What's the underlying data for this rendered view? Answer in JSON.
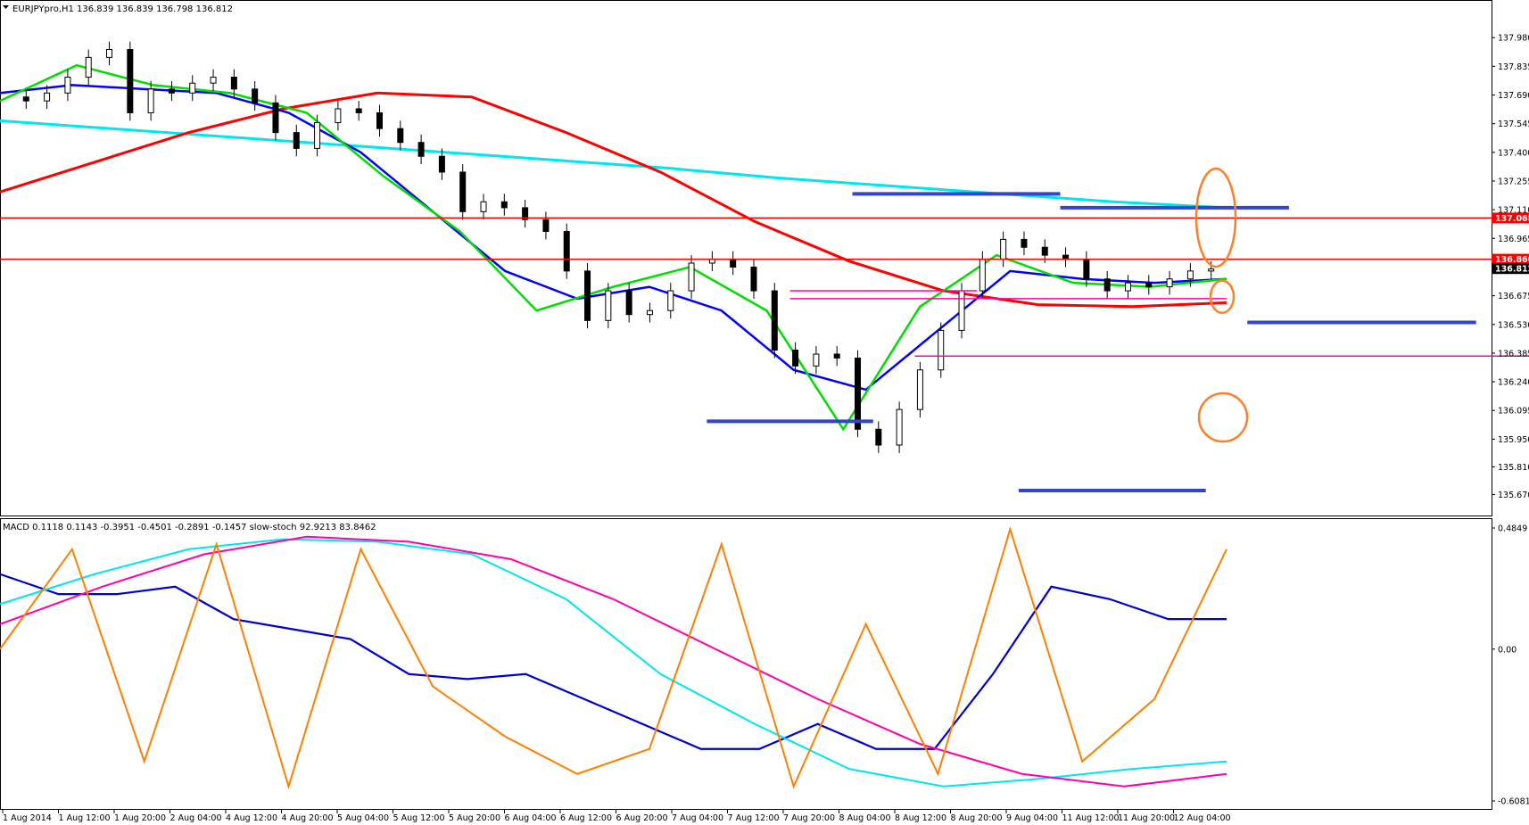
{
  "chart_data": [
    {
      "type": "candlestick",
      "title": "EURJPYpro,H1",
      "ohlc_label": "136.839 136.839 136.798 136.812",
      "ylim": [
        135.6,
        138.08
      ],
      "y_ticks": [
        "137.980",
        "137.835",
        "137.690",
        "137.545",
        "137.400",
        "137.255",
        "137.110",
        "136.965",
        "136.820",
        "136.675",
        "136.530",
        "136.385",
        "136.240",
        "136.095",
        "135.950",
        "135.810",
        "135.670"
      ],
      "price_tags": [
        {
          "label": "137.068",
          "value": 137.068,
          "color": "#ff0000"
        },
        {
          "label": "136.860",
          "value": 136.86,
          "color": "#ff0000"
        },
        {
          "label": "136.812",
          "value": 136.812,
          "color": "#000000"
        }
      ],
      "x_ticks": [
        "1 Aug 2014",
        "1 Aug 12:00",
        "1 Aug 20:00",
        "2 Aug 04:00",
        "4 Aug 12:00",
        "4 Aug 20:00",
        "5 Aug 04:00",
        "5 Aug 12:00",
        "5 Aug 20:00",
        "6 Aug 04:00",
        "6 Aug 12:00",
        "6 Aug 20:00",
        "7 Aug 04:00",
        "7 Aug 12:00",
        "7 Aug 20:00",
        "8 Aug 04:00",
        "8 Aug 12:00",
        "8 Aug 20:00",
        "9 Aug 04:00",
        "11 Aug 12:00",
        "11 Aug 20:00",
        "12 Aug 04:00"
      ],
      "close_path": [
        137.68,
        137.66,
        137.7,
        137.78,
        137.88,
        137.92,
        137.6,
        137.72,
        137.7,
        137.75,
        137.78,
        137.72,
        137.65,
        137.5,
        137.42,
        137.55,
        137.62,
        137.6,
        137.52,
        137.45,
        137.38,
        137.3,
        137.1,
        137.15,
        137.12,
        137.06,
        137.0,
        136.8,
        136.55,
        136.7,
        136.58,
        136.6,
        136.7,
        136.84,
        136.86,
        136.82,
        136.7,
        136.4,
        136.32,
        136.38,
        136.36,
        136.0,
        135.92,
        136.1,
        136.3,
        136.5,
        136.7,
        136.86,
        136.96,
        136.92,
        136.88,
        136.86,
        136.76,
        136.7,
        136.74,
        136.72,
        136.76,
        136.8,
        136.81
      ],
      "series": [
        {
          "name": "",
          "color": "#00e5ee",
          "values": [
            137.56,
            137.52,
            137.48,
            137.44,
            137.4,
            137.36,
            137.32,
            137.27,
            137.23,
            137.19,
            137.15,
            137.12
          ]
        },
        {
          "name": "",
          "color": "#ff0000",
          "values": [
            137.2,
            137.35,
            137.5,
            137.62,
            137.7,
            137.68,
            137.5,
            137.3,
            137.05,
            136.85,
            136.7,
            136.63,
            136.62,
            136.64
          ]
        },
        {
          "name": "",
          "color": "#0000ff",
          "values": [
            137.7,
            137.74,
            137.72,
            137.7,
            137.6,
            137.4,
            137.1,
            136.8,
            136.66,
            136.72,
            136.6,
            136.3,
            136.2,
            136.5,
            136.8,
            136.76,
            136.74,
            136.76
          ]
        },
        {
          "name": "",
          "color": "#00dd00",
          "values": [
            137.66,
            137.84,
            137.74,
            137.7,
            137.6,
            137.28,
            137.0,
            136.6,
            136.72,
            136.82,
            136.6,
            136.0,
            136.62,
            136.88,
            136.74,
            136.72,
            136.76
          ]
        }
      ],
      "hlines": [
        {
          "value": 137.068,
          "color": "#ff0000"
        },
        {
          "value": 136.86,
          "color": "#ff0000"
        }
      ],
      "segments": [
        {
          "y": 137.19,
          "from": 41,
          "to": 51,
          "color": "#3344cc"
        },
        {
          "y": 137.12,
          "from": 51,
          "to": 62,
          "color": "#3344cc"
        },
        {
          "y": 136.54,
          "from": 60,
          "to": 71,
          "color": "#3344cc"
        },
        {
          "y": 136.04,
          "from": 34,
          "to": 42,
          "color": "#3344cc"
        },
        {
          "y": 135.69,
          "from": 49,
          "to": 58,
          "color": "#3344cc"
        },
        {
          "y": 136.7,
          "from": 38,
          "to": 47,
          "color": "#ff00aa"
        },
        {
          "y": 136.66,
          "from": 38,
          "to": 59,
          "color": "#ff00aa"
        },
        {
          "y": 136.37,
          "from": 44,
          "to": 78,
          "color": "#ff00aa"
        }
      ]
    },
    {
      "type": "line",
      "title": "MACD 0.1118 0.1143 -0.3951 -0.4501 -0.2891 -0.1457 slow-stoch 92.9213 83.8462",
      "ylim": [
        -0.6081,
        0.4849
      ],
      "y_ticks": [
        "0.4849",
        "0.00",
        "-0.6081"
      ],
      "series": [
        {
          "name": "",
          "color": "#0000cc",
          "values": [
            0.3,
            0.22,
            0.22,
            0.25,
            0.12,
            0.08,
            0.04,
            -0.1,
            -0.12,
            -0.1,
            -0.2,
            -0.3,
            -0.4,
            -0.4,
            -0.3,
            -0.4,
            -0.4,
            -0.1,
            0.25,
            0.2,
            0.12,
            0.12
          ]
        },
        {
          "name": "",
          "color": "#00e5ee",
          "values": [
            0.18,
            0.3,
            0.4,
            0.44,
            0.43,
            0.38,
            0.2,
            -0.1,
            -0.3,
            -0.48,
            -0.55,
            -0.52,
            -0.48,
            -0.45
          ]
        },
        {
          "name": "",
          "color": "#ff00aa",
          "values": [
            0.1,
            0.25,
            0.38,
            0.45,
            0.43,
            0.36,
            0.2,
            0.0,
            -0.2,
            -0.38,
            -0.5,
            -0.55,
            -0.5
          ]
        },
        {
          "name": "",
          "color": "#ff7f00",
          "values": [
            0.0,
            0.4,
            -0.45,
            0.42,
            -0.55,
            0.4,
            -0.15,
            -0.35,
            -0.5,
            -0.4,
            0.42,
            -0.55,
            0.1,
            -0.5,
            0.48,
            -0.45,
            -0.2,
            0.4
          ]
        }
      ]
    }
  ]
}
